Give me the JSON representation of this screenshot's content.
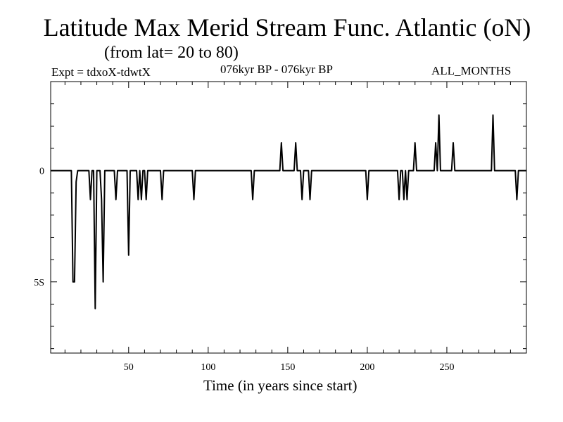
{
  "header": {
    "title": "Latitude Max Merid Stream Func. Atlantic (oN)",
    "subtitle": "(from lat= 20 to 80)",
    "expt": "Expt = tdxoX-tdwtX",
    "period": "076kyr BP - 076kyr BP",
    "months": "ALL_MONTHS"
  },
  "chart_data": {
    "type": "line",
    "title": "Latitude Max Merid Stream Func. Atlantic (oN)",
    "subtitle": "(from lat= 20 to 80)",
    "xlabel": "Time (in years since start)",
    "ylabel": "",
    "xlim": [
      1,
      300
    ],
    "ylim": [
      -8.2,
      4.0
    ],
    "x_ticks": [
      50,
      100,
      150,
      200,
      250
    ],
    "x_tick_labels": [
      "50",
      "100",
      "150",
      "200",
      "250"
    ],
    "y_ticks": [
      0,
      -5
    ],
    "y_tick_labels": [
      "0",
      "5S"
    ],
    "series": [
      {
        "name": "tdxoX-tdwtX",
        "x": [
          1,
          14,
          15,
          16,
          17,
          18,
          25,
          26,
          27,
          28,
          29,
          30,
          32,
          33,
          34,
          35,
          36,
          41,
          42,
          43,
          49,
          50,
          51,
          55,
          56,
          57,
          58,
          59,
          60,
          61,
          62,
          63,
          70,
          71,
          72,
          90,
          91,
          92,
          127,
          128,
          129,
          145,
          146,
          147,
          154,
          155,
          156,
          158,
          159,
          160,
          163,
          164,
          165,
          199,
          200,
          201,
          219,
          220,
          221,
          222,
          223,
          224,
          225,
          226,
          229,
          230,
          231,
          242,
          243,
          244,
          245,
          246,
          253,
          254,
          255,
          278,
          279,
          280,
          293,
          294,
          295,
          300
        ],
        "values": [
          0,
          0,
          -5.0,
          -5.0,
          -0.5,
          0,
          0,
          -1.3,
          0,
          0,
          -6.2,
          0,
          0,
          -1.3,
          -5.0,
          0,
          0,
          0,
          -1.3,
          0,
          0,
          -3.8,
          0,
          0,
          -1.3,
          0,
          -1.3,
          0,
          0,
          -1.3,
          0,
          0,
          0,
          -1.3,
          0,
          0,
          -1.3,
          0,
          0,
          -1.3,
          0,
          0,
          1.25,
          0,
          0,
          1.25,
          0,
          0,
          -1.3,
          0,
          0,
          -1.3,
          0,
          0,
          -1.3,
          0,
          0,
          -1.3,
          0,
          0,
          -1.3,
          0,
          -1.3,
          0,
          0,
          1.25,
          0,
          0,
          1.25,
          0,
          2.5,
          0,
          0,
          1.25,
          0,
          0,
          2.5,
          0,
          0,
          -1.3,
          0,
          0
        ]
      }
    ]
  }
}
